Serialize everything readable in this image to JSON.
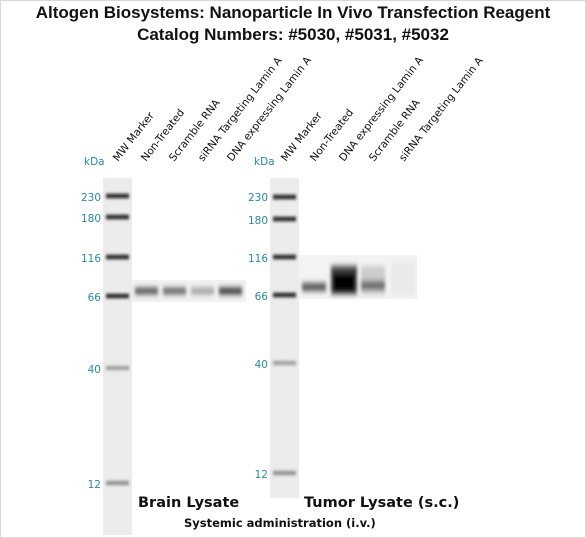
{
  "header": {
    "title": "Altogen Biosystems: Nanoparticle In Vivo Transfection Reagent",
    "subtitle": "Catalog Numbers: #5030, #5031, #5032"
  },
  "panels": [
    {
      "lanes": [
        "MW Marker",
        "Non-Treated",
        "Scramble RNA",
        "siRNA Targeting Lamin A",
        "DNA expressing Lamin A"
      ],
      "unit": "kDa",
      "markers": [
        "230",
        "180",
        "116",
        "66",
        "40",
        "12"
      ],
      "label": "Brain Lysate"
    },
    {
      "lanes": [
        "MW Marker",
        "Non-Treated",
        "DNA expressing Lamin A",
        "Scramble RNA",
        "siRNA Targeting Lamin A"
      ],
      "unit": "kDa",
      "markers": [
        "230",
        "180",
        "116",
        "66",
        "40",
        "12"
      ],
      "label": "Tumor Lysate (s.c.)"
    }
  ],
  "footer": "Systemic administration (i.v.)"
}
